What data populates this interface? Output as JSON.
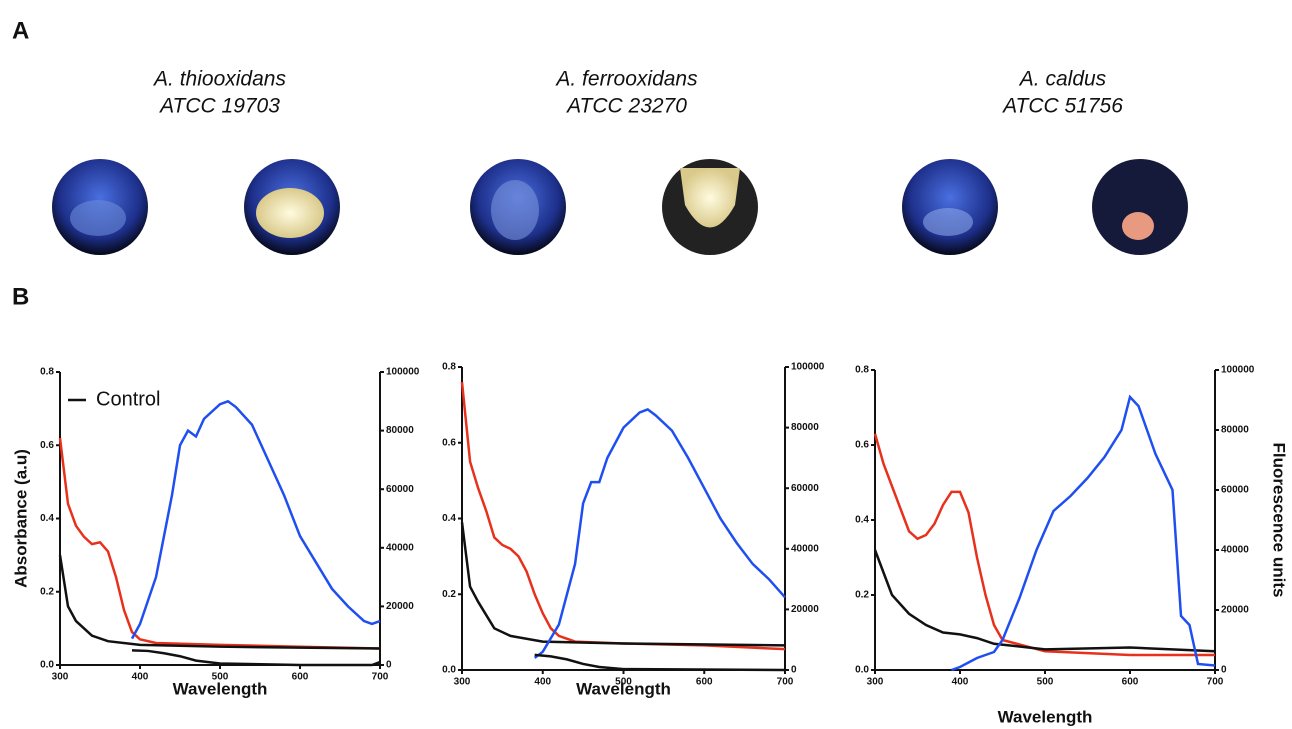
{
  "panel_labels": [
    "A",
    "B"
  ],
  "species": [
    {
      "name": "A. thiooxidans",
      "strain": "ATCC 19703"
    },
    {
      "name": "A. ferrooxidans",
      "strain": "ATCC 23270"
    },
    {
      "name": "A. caldus",
      "strain": "ATCC 51756"
    }
  ],
  "chart_data": [
    {
      "type": "line",
      "xlabel": "Wavelength",
      "ylabel": "Absorbance (a.u)",
      "xlim": [
        300,
        700
      ],
      "ylim": [
        0,
        0.8
      ],
      "y2lim": [
        0,
        100000
      ],
      "xticks": [
        300,
        400,
        500,
        600,
        700
      ],
      "yticks": [
        {
          "value": 0,
          "label": "0.0"
        },
        0.2,
        0.4,
        0.6,
        0.8
      ],
      "y2ticks": [
        0,
        20000,
        40000,
        60000,
        80000,
        100000
      ],
      "series": [
        {
          "color": "#e8311d",
          "axis": "y",
          "x": [
            300,
            310,
            320,
            330,
            340,
            350,
            360,
            370,
            380,
            390,
            400,
            420,
            500,
            600,
            700
          ],
          "values": [
            0.62,
            0.44,
            0.38,
            0.35,
            0.33,
            0.335,
            0.31,
            0.24,
            0.15,
            0.09,
            0.07,
            0.06,
            0.055,
            0.05,
            0.045
          ]
        },
        {
          "name": "Control",
          "color": "#111111",
          "axis": "y",
          "x": [
            300,
            310,
            320,
            340,
            360,
            400,
            500,
            700
          ],
          "values": [
            0.3,
            0.16,
            0.12,
            0.08,
            0.065,
            0.055,
            0.05,
            0.045
          ]
        },
        {
          "color": "#1f4ff0",
          "axis": "y2",
          "x": [
            390,
            400,
            420,
            440,
            450,
            460,
            470,
            480,
            500,
            510,
            520,
            540,
            560,
            580,
            600,
            620,
            640,
            660,
            680,
            690,
            700
          ],
          "values": [
            9000,
            14000,
            30000,
            58000,
            75000,
            80000,
            78000,
            84000,
            89000,
            90000,
            88000,
            82000,
            70000,
            58000,
            44000,
            35000,
            26000,
            20000,
            15000,
            14000,
            15000
          ]
        },
        {
          "color": "#111111",
          "axis": "y2",
          "x": [
            390,
            410,
            430,
            450,
            470,
            500,
            600,
            690,
            700
          ],
          "values": [
            5000,
            4800,
            4000,
            3000,
            1500,
            500,
            0,
            0,
            1000
          ]
        }
      ]
    },
    {
      "type": "line",
      "xlabel": "Wavelength",
      "xlim": [
        300,
        700
      ],
      "ylim": [
        0,
        0.8
      ],
      "y2lim": [
        0,
        100000
      ],
      "xticks": [
        300,
        400,
        500,
        600,
        700
      ],
      "yticks": [
        {
          "value": 0,
          "label": "0.0"
        },
        0.2,
        0.4,
        0.6,
        0.8
      ],
      "y2ticks": [
        0,
        20000,
        40000,
        60000,
        80000,
        100000
      ],
      "series": [
        {
          "color": "#e8311d",
          "axis": "y",
          "x": [
            300,
            310,
            320,
            330,
            340,
            350,
            360,
            370,
            380,
            390,
            400,
            410,
            420,
            440,
            500,
            600,
            700
          ],
          "values": [
            0.76,
            0.55,
            0.48,
            0.42,
            0.35,
            0.33,
            0.32,
            0.3,
            0.26,
            0.2,
            0.15,
            0.11,
            0.09,
            0.075,
            0.07,
            0.065,
            0.055
          ]
        },
        {
          "color": "#111111",
          "axis": "y",
          "x": [
            300,
            310,
            320,
            340,
            360,
            400,
            500,
            700
          ],
          "values": [
            0.39,
            0.22,
            0.18,
            0.11,
            0.09,
            0.075,
            0.07,
            0.065
          ]
        },
        {
          "color": "#1f4ff0",
          "axis": "y2",
          "x": [
            390,
            400,
            420,
            440,
            450,
            460,
            470,
            480,
            500,
            520,
            530,
            540,
            560,
            580,
            600,
            620,
            640,
            660,
            680,
            700
          ],
          "values": [
            4000,
            6000,
            15000,
            35000,
            55000,
            62000,
            62000,
            70000,
            80000,
            85000,
            86000,
            84000,
            79000,
            70000,
            60000,
            50000,
            42000,
            35000,
            30000,
            24000
          ]
        },
        {
          "color": "#111111",
          "axis": "y2",
          "x": [
            390,
            410,
            430,
            450,
            470,
            500,
            700
          ],
          "values": [
            5000,
            4500,
            3500,
            2000,
            1000,
            300,
            0
          ]
        }
      ]
    },
    {
      "type": "line",
      "xlabel": "Wavelength",
      "y2label": "Fluorescence units",
      "xlim": [
        300,
        700
      ],
      "ylim": [
        0,
        0.8
      ],
      "y2lim": [
        0,
        100000
      ],
      "xticks": [
        300,
        400,
        500,
        600,
        700
      ],
      "yticks": [
        {
          "value": 0,
          "label": "0.0"
        },
        0.2,
        0.4,
        0.6,
        0.8
      ],
      "y2ticks": [
        0,
        20000,
        40000,
        60000,
        80000,
        100000
      ],
      "series": [
        {
          "color": "#e8311d",
          "axis": "y",
          "x": [
            300,
            310,
            320,
            330,
            340,
            350,
            360,
            370,
            380,
            390,
            400,
            410,
            420,
            430,
            440,
            450,
            500,
            600,
            700
          ],
          "values": [
            0.63,
            0.55,
            0.49,
            0.43,
            0.37,
            0.35,
            0.36,
            0.39,
            0.44,
            0.475,
            0.475,
            0.42,
            0.3,
            0.2,
            0.12,
            0.08,
            0.05,
            0.04,
            0.04
          ]
        },
        {
          "color": "#111111",
          "axis": "y",
          "x": [
            300,
            310,
            320,
            340,
            360,
            380,
            400,
            420,
            440,
            500,
            600,
            700
          ],
          "values": [
            0.32,
            0.26,
            0.2,
            0.15,
            0.12,
            0.1,
            0.095,
            0.085,
            0.07,
            0.055,
            0.06,
            0.05
          ]
        },
        {
          "color": "#1f4ff0",
          "axis": "y2",
          "x": [
            390,
            400,
            420,
            440,
            450,
            470,
            490,
            510,
            530,
            550,
            570,
            590,
            600,
            610,
            620,
            630,
            650,
            660,
            670,
            680,
            700
          ],
          "values": [
            0,
            1000,
            4000,
            6000,
            10000,
            24000,
            40000,
            53000,
            58000,
            64000,
            71000,
            80000,
            91000,
            88000,
            80000,
            72000,
            60000,
            18000,
            15000,
            2000,
            1500
          ]
        }
      ]
    }
  ]
}
